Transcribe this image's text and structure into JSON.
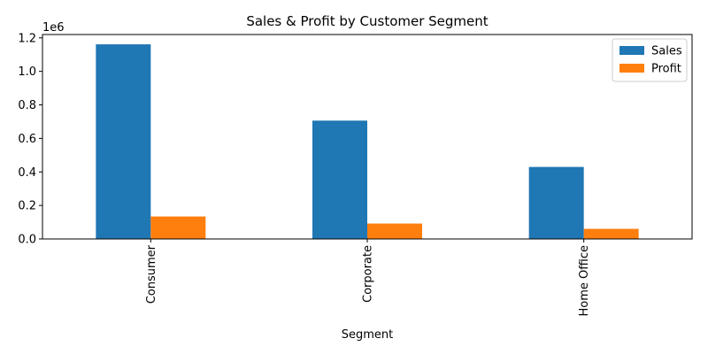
{
  "chart_data": {
    "type": "bar",
    "title": "Sales & Profit by Customer Segment",
    "xlabel": "Segment",
    "ylabel": "",
    "offset_label": "1e6",
    "categories": [
      "Consumer",
      "Corporate",
      "Home Office"
    ],
    "series": [
      {
        "name": "Sales",
        "color": "#1f77b4",
        "values": [
          1161401,
          706146,
          429653
        ]
      },
      {
        "name": "Profit",
        "color": "#ff7f0e",
        "values": [
          134119,
          91979,
          60299
        ]
      }
    ],
    "ylim": [
      0,
      1220000
    ],
    "yticks": [
      0,
      200000,
      400000,
      600000,
      800000,
      1000000,
      1200000
    ],
    "ytick_labels": [
      "0.0",
      "0.2",
      "0.4",
      "0.6",
      "0.8",
      "1.0",
      "1.2"
    ],
    "legend": "top-right",
    "grid": false
  }
}
